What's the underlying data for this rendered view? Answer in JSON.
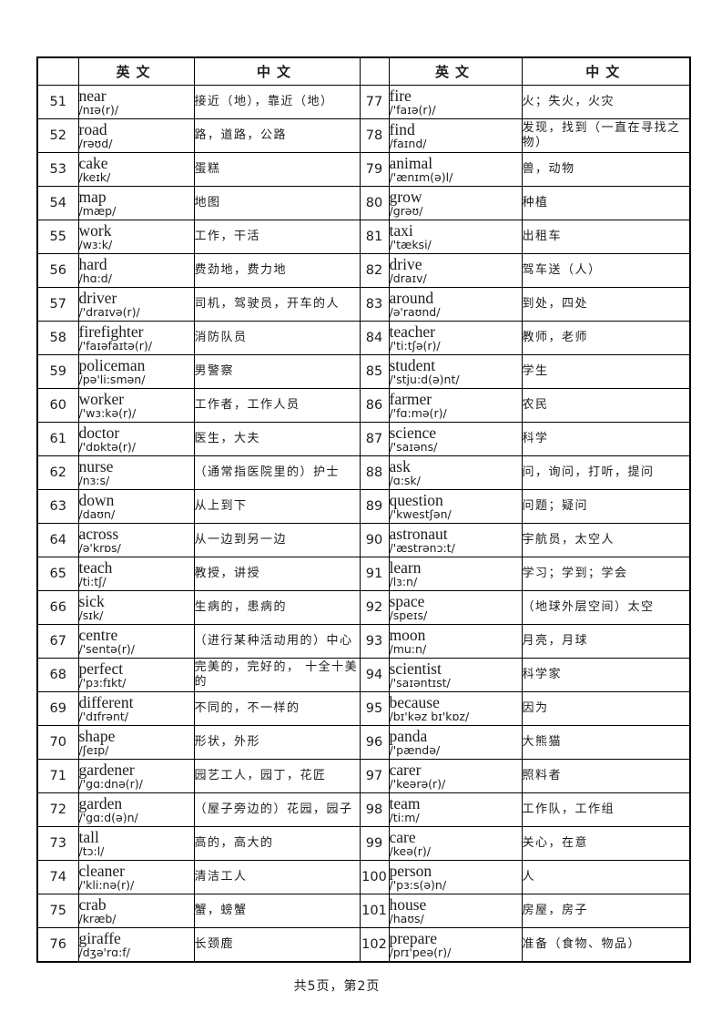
{
  "page": {
    "footer": "共5页，第2页"
  },
  "table": {
    "headers": {
      "en": "英文",
      "zh": "中文"
    },
    "left_rows": [
      {
        "num": "51",
        "word": "near",
        "phonetic": "/nɪə(r)/",
        "meaning": "接近（地），靠近（地）"
      },
      {
        "num": "52",
        "word": "road",
        "phonetic": "/rəʊd/",
        "meaning": "路，道路，公路"
      },
      {
        "num": "53",
        "word": "cake",
        "phonetic": "/keɪk/",
        "meaning": "蛋糕"
      },
      {
        "num": "54",
        "word": "map",
        "phonetic": "/mæp/",
        "meaning": "地图"
      },
      {
        "num": "55",
        "word": "work",
        "phonetic": "/wɜ:k/",
        "meaning": "工作，干活"
      },
      {
        "num": "56",
        "word": "hard",
        "phonetic": "/hɑ:d/",
        "meaning": "费劲地，费力地"
      },
      {
        "num": "57",
        "word": "driver",
        "phonetic": "/'draɪvə(r)/",
        "meaning": "司机，驾驶员，开车的人"
      },
      {
        "num": "58",
        "word": "firefighter",
        "phonetic": "/'faɪəfaɪtə(r)/",
        "meaning": "消防队员"
      },
      {
        "num": "59",
        "word": "policeman",
        "phonetic": "/pə'li:smən/",
        "meaning": "男警察"
      },
      {
        "num": "60",
        "word": "worker",
        "phonetic": "/'wɜ:kə(r)/",
        "meaning": "工作者，工作人员"
      },
      {
        "num": "61",
        "word": "doctor",
        "phonetic": "/'dɒktə(r)/",
        "meaning": "医生，大夫"
      },
      {
        "num": "62",
        "word": "nurse",
        "phonetic": "/nɜ:s/",
        "meaning": "（通常指医院里的）护士"
      },
      {
        "num": "63",
        "word": "down",
        "phonetic": "/daʊn/",
        "meaning": "从上到下"
      },
      {
        "num": "64",
        "word": "across",
        "phonetic": "/ə'krɒs/",
        "meaning": "从一边到另一边"
      },
      {
        "num": "65",
        "word": "teach",
        "phonetic": "/ti:tʃ/",
        "meaning": "教授，讲授"
      },
      {
        "num": "66",
        "word": "sick",
        "phonetic": "/sɪk/",
        "meaning": "生病的，患病的"
      },
      {
        "num": "67",
        "word": "centre",
        "phonetic": "/'sentə(r)/",
        "meaning": "（进行某种活动用的）中心"
      },
      {
        "num": "68",
        "word": "perfect",
        "phonetic": "/'pɜ:fɪkt/",
        "meaning": "完美的，完好的， 十全十美的"
      },
      {
        "num": "69",
        "word": "different",
        "phonetic": "/'dɪfrənt/",
        "meaning": "不同的，不一样的"
      },
      {
        "num": "70",
        "word": "shape",
        "phonetic": "/ʃeɪp/",
        "meaning": "形状，外形"
      },
      {
        "num": "71",
        "word": "gardener",
        "phonetic": "/'gɑ:dnə(r)/",
        "meaning": "园艺工人，园丁，花匠"
      },
      {
        "num": "72",
        "word": "garden",
        "phonetic": "/'gɑ:d(ə)n/",
        "meaning": "（屋子旁边的）花园，园子"
      },
      {
        "num": "73",
        "word": "tall",
        "phonetic": "/tɔ:l/",
        "meaning": "高的，高大的"
      },
      {
        "num": "74",
        "word": "cleaner",
        "phonetic": "/'kli:nə(r)/",
        "meaning": "清洁工人"
      },
      {
        "num": "75",
        "word": "crab",
        "phonetic": "/kræb/",
        "meaning": "蟹，螃蟹"
      },
      {
        "num": "76",
        "word": "giraffe",
        "phonetic": "/dʒə'rɑ:f/",
        "meaning": "长颈鹿"
      }
    ],
    "right_rows": [
      {
        "num": "77",
        "word": "fire",
        "phonetic": "/'faɪə(r)/",
        "meaning": "火；失火，火灾"
      },
      {
        "num": "78",
        "word": "find",
        "phonetic": "/faɪnd/",
        "meaning": "发现，找到（一直在寻找之物）"
      },
      {
        "num": "79",
        "word": "animal",
        "phonetic": "/'ænɪm(ə)l/",
        "meaning": "兽，动物"
      },
      {
        "num": "80",
        "word": "grow",
        "phonetic": "/grəʊ/",
        "meaning": "种植"
      },
      {
        "num": "81",
        "word": "taxi",
        "phonetic": "/'tæksi/",
        "meaning": "出租车"
      },
      {
        "num": "82",
        "word": "drive",
        "phonetic": "/draɪv/",
        "meaning": "驾车送（人）"
      },
      {
        "num": "83",
        "word": "around",
        "phonetic": "/ə'raʊnd/",
        "meaning": "到处，四处"
      },
      {
        "num": "84",
        "word": "teacher",
        "phonetic": "/'ti:tʃə(r)/",
        "meaning": "教师，老师"
      },
      {
        "num": "85",
        "word": "student",
        "phonetic": "/'stju:d(ə)nt/",
        "meaning": "学生"
      },
      {
        "num": "86",
        "word": "farmer",
        "phonetic": "/'fɑ:mə(r)/",
        "meaning": "农民"
      },
      {
        "num": "87",
        "word": "science",
        "phonetic": "/'saɪəns/",
        "meaning": "科学"
      },
      {
        "num": "88",
        "word": "ask",
        "phonetic": "/ɑ:sk/",
        "meaning": "问，询问，打听，提问"
      },
      {
        "num": "89",
        "word": "question",
        "phonetic": "/'kwestʃən/",
        "meaning": "问题；疑问"
      },
      {
        "num": "90",
        "word": "astronaut",
        "phonetic": "/'æstrənɔ:t/",
        "meaning": "宇航员，太空人"
      },
      {
        "num": "91",
        "word": "learn",
        "phonetic": "/lɜ:n/",
        "meaning": "学习；学到；学会"
      },
      {
        "num": "92",
        "word": "space",
        "phonetic": "/speɪs/",
        "meaning": "（地球外层空间）太空"
      },
      {
        "num": "93",
        "word": "moon",
        "phonetic": "/mu:n/",
        "meaning": "月亮，月球"
      },
      {
        "num": "94",
        "word": "scientist",
        "phonetic": "/'saɪəntɪst/",
        "meaning": "科学家"
      },
      {
        "num": "95",
        "word": "because",
        "phonetic": "/bɪ'kəz bɪ'kɒz/",
        "meaning": "因为"
      },
      {
        "num": "96",
        "word": "panda",
        "phonetic": "/'pændə/",
        "meaning": "大熊猫"
      },
      {
        "num": "97",
        "word": "carer",
        "phonetic": "/'keərə(r)/",
        "meaning": "照料者"
      },
      {
        "num": "98",
        "word": "team",
        "phonetic": "/ti:m/",
        "meaning": "工作队，工作组"
      },
      {
        "num": "99",
        "word": "care",
        "phonetic": "/keə(r)/",
        "meaning": "关心，在意"
      },
      {
        "num": "100",
        "word": "person",
        "phonetic": "/'pɜ:s(ə)n/",
        "meaning": "人"
      },
      {
        "num": "101",
        "word": "house",
        "phonetic": "/haʊs/",
        "meaning": "房屋，房子"
      },
      {
        "num": "102",
        "word": "prepare",
        "phonetic": "/prɪ'peə(r)/",
        "meaning": "准备（食物、物品）"
      }
    ]
  }
}
